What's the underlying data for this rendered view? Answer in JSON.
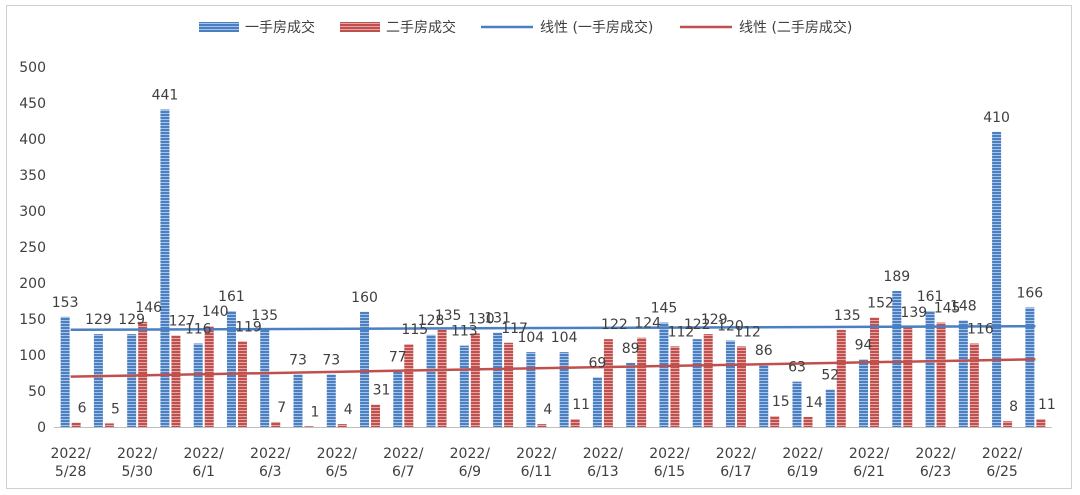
{
  "chart_data": {
    "type": "bar",
    "categories": [
      "2022/5/28",
      "2022/5/29",
      "2022/5/30",
      "2022/5/31",
      "2022/6/1",
      "2022/6/2",
      "2022/6/3",
      "2022/6/4",
      "2022/6/5",
      "2022/6/6",
      "2022/6/7",
      "2022/6/8",
      "2022/6/9",
      "2022/6/10",
      "2022/6/11",
      "2022/6/12",
      "2022/6/13",
      "2022/6/14",
      "2022/6/15",
      "2022/6/16",
      "2022/6/17",
      "2022/6/18",
      "2022/6/19",
      "2022/6/20",
      "2022/6/21",
      "2022/6/22",
      "2022/6/23",
      "2022/6/24",
      "2022/6/25",
      "2022/6/26"
    ],
    "x_tick_labels": [
      {
        "line1": "2022/",
        "line2": "5/28"
      },
      {
        "line1": "2022/",
        "line2": "5/30"
      },
      {
        "line1": "2022/",
        "line2": "6/1"
      },
      {
        "line1": "2022/",
        "line2": "6/3"
      },
      {
        "line1": "2022/",
        "line2": "6/5"
      },
      {
        "line1": "2022/",
        "line2": "6/7"
      },
      {
        "line1": "2022/",
        "line2": "6/9"
      },
      {
        "line1": "2022/",
        "line2": "6/11"
      },
      {
        "line1": "2022/",
        "line2": "6/13"
      },
      {
        "line1": "2022/",
        "line2": "6/15"
      },
      {
        "line1": "2022/",
        "line2": "6/17"
      },
      {
        "line1": "2022/",
        "line2": "6/19"
      },
      {
        "line1": "2022/",
        "line2": "6/21"
      },
      {
        "line1": "2022/",
        "line2": "6/23"
      },
      {
        "line1": "2022/",
        "line2": "6/25"
      }
    ],
    "series": [
      {
        "name": "一手房成交",
        "color": "#4a7fc1",
        "values": [
          153,
          129,
          129,
          441,
          116,
          161,
          135,
          73,
          73,
          160,
          77,
          128,
          113,
          131,
          104,
          104,
          69,
          89,
          145,
          122,
          120,
          86,
          63,
          52,
          94,
          189,
          161,
          148,
          410,
          166
        ]
      },
      {
        "name": "二手房成交",
        "color": "#c0504d",
        "values": [
          6,
          5,
          146,
          127,
          140,
          119,
          7,
          1,
          4,
          31,
          115,
          135,
          130,
          117,
          4,
          11,
          122,
          124,
          112,
          129,
          112,
          15,
          14,
          135,
          152,
          139,
          145,
          116,
          8,
          11
        ]
      }
    ],
    "trendlines": [
      {
        "name": "线性 (一手房成交)",
        "color": "#4a7fc1",
        "start": 135,
        "end": 140
      },
      {
        "name": "线性 (二手房成交)",
        "color": "#c0504d",
        "start": 70,
        "end": 94
      }
    ],
    "y_ticks": [
      0,
      50,
      100,
      150,
      200,
      250,
      300,
      350,
      400,
      450,
      500
    ],
    "ylim": [
      0,
      500
    ],
    "grid": false,
    "legend_position": "top"
  }
}
